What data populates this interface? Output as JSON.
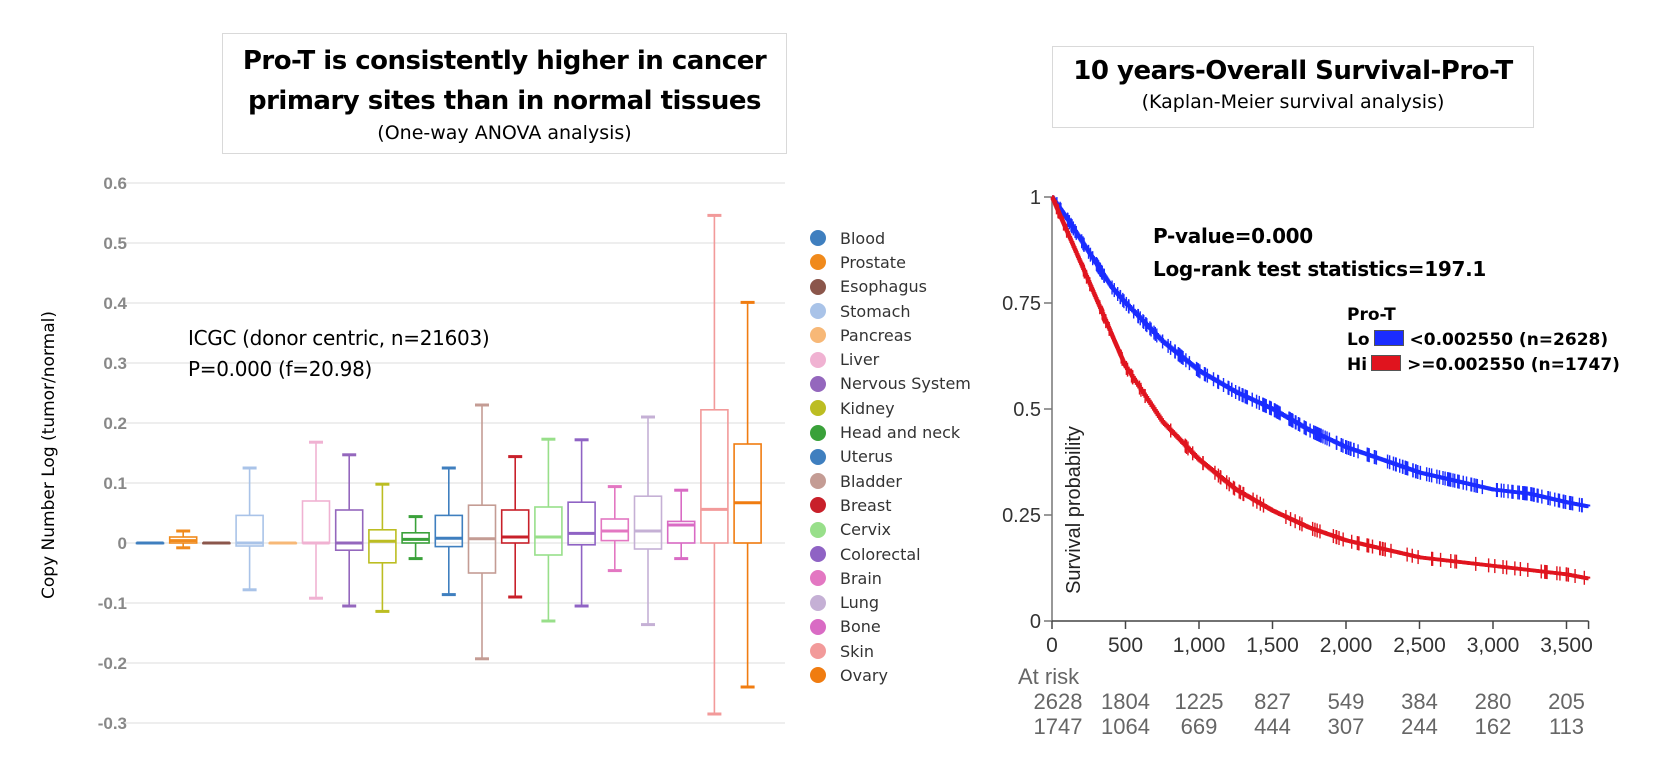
{
  "left_panel": {
    "title_line1": "Pro-T is consistently higher in cancer",
    "title_line2": "primary sites than in normal tissues",
    "subtitle": "(One-way ANOVA analysis)",
    "annotation_line1": "ICGC (donor centric, n=21603)",
    "annotation_line2": "P=0.000 (f=20.98)"
  },
  "right_panel": {
    "title": "10 years-Overall Survival-Pro-T",
    "subtitle": "(Kaplan-Meier survival analysis)",
    "pvalue": "P-value=0.000",
    "logrank": "Log-rank test statistics=197.1",
    "legend_title": "Pro-T",
    "legend": [
      {
        "group": "Lo",
        "label": "<0.002550 (n=2628)",
        "color": "#1a2cff"
      },
      {
        "group": "Hi",
        "label": ">=0.002550 (n=1747)",
        "color": "#e0141e"
      }
    ],
    "at_risk_label": "At risk"
  },
  "chart_data": [
    {
      "type": "boxplot",
      "title": "Pro-T is consistently higher in cancer primary sites than in normal tissues",
      "subtitle": "(One-way ANOVA analysis)",
      "xlabel": "",
      "ylabel": "Copy Number Log (tumor/normal)",
      "ylim": [
        -0.3,
        0.6
      ],
      "yticks": [
        0.6,
        0.5,
        0.4,
        0.3,
        0.2,
        0.1,
        0,
        -0.1,
        -0.2,
        -0.3
      ],
      "ytick_labels": [
        "0.6",
        "0.5",
        "0.4",
        "0.3",
        "0.2",
        "0.1",
        "0",
        "-0.1",
        "-0.2",
        "-0.3"
      ],
      "grid": true,
      "legend_position": "right",
      "series": [
        {
          "name": "Blood",
          "color": "#3f7fbf",
          "min": 0.0,
          "q1": 0.0,
          "median": 0.0,
          "q3": 0.0,
          "max": 0.0
        },
        {
          "name": "Prostate",
          "color": "#f08a1c",
          "min": -0.008,
          "q1": 0.0,
          "median": 0.004,
          "q3": 0.01,
          "max": 0.02
        },
        {
          "name": "Esophagus",
          "color": "#8b564b",
          "min": 0.0,
          "q1": 0.0,
          "median": 0.0,
          "q3": 0.0,
          "max": 0.0
        },
        {
          "name": "Stomach",
          "color": "#a9c3e8",
          "min": -0.078,
          "q1": -0.005,
          "median": 0.0,
          "q3": 0.046,
          "max": 0.125
        },
        {
          "name": "Pancreas",
          "color": "#f7b877",
          "min": 0.0,
          "q1": 0.0,
          "median": 0.0,
          "q3": 0.0,
          "max": 0.0
        },
        {
          "name": "Liver",
          "color": "#f0b2d2",
          "min": -0.092,
          "q1": 0.0,
          "median": 0.0,
          "q3": 0.07,
          "max": 0.168
        },
        {
          "name": "Nervous System",
          "color": "#9467bd",
          "min": -0.105,
          "q1": -0.012,
          "median": 0.0,
          "q3": 0.055,
          "max": 0.147
        },
        {
          "name": "Kidney",
          "color": "#bcbd22",
          "min": -0.114,
          "q1": -0.033,
          "median": 0.003,
          "q3": 0.022,
          "max": 0.098
        },
        {
          "name": "Head and neck",
          "color": "#3aa13a",
          "min": -0.026,
          "q1": 0.0,
          "median": 0.006,
          "q3": 0.017,
          "max": 0.044
        },
        {
          "name": "Uterus",
          "color": "#3f7fbf",
          "min": -0.086,
          "q1": -0.006,
          "median": 0.008,
          "q3": 0.046,
          "max": 0.125
        },
        {
          "name": "Bladder",
          "color": "#c49c94",
          "min": -0.193,
          "q1": -0.05,
          "median": 0.007,
          "q3": 0.063,
          "max": 0.23
        },
        {
          "name": "Breast",
          "color": "#c8202a",
          "min": -0.09,
          "q1": 0.0,
          "median": 0.01,
          "q3": 0.055,
          "max": 0.144
        },
        {
          "name": "Cervix",
          "color": "#98df8a",
          "min": -0.13,
          "q1": -0.02,
          "median": 0.01,
          "q3": 0.06,
          "max": 0.173
        },
        {
          "name": "Colorectal",
          "color": "#8f63c4",
          "min": -0.105,
          "q1": -0.003,
          "median": 0.016,
          "q3": 0.068,
          "max": 0.172
        },
        {
          "name": "Brain",
          "color": "#e377c2",
          "min": -0.046,
          "q1": 0.004,
          "median": 0.02,
          "q3": 0.04,
          "max": 0.094
        },
        {
          "name": "Lung",
          "color": "#c5b0d5",
          "min": -0.136,
          "q1": -0.01,
          "median": 0.02,
          "q3": 0.078,
          "max": 0.21
        },
        {
          "name": "Bone",
          "color": "#d96bc4",
          "min": -0.026,
          "q1": 0.0,
          "median": 0.03,
          "q3": 0.036,
          "max": 0.088
        },
        {
          "name": "Skin",
          "color": "#f29a9a",
          "min": -0.285,
          "q1": 0.0,
          "median": 0.056,
          "q3": 0.222,
          "max": 0.546
        },
        {
          "name": "Ovary",
          "color": "#f07c10",
          "min": -0.24,
          "q1": 0.0,
          "median": 0.067,
          "q3": 0.165,
          "max": 0.401
        }
      ],
      "annotations": [
        "ICGC (donor centric, n=21603)",
        "P=0.000 (f=20.98)"
      ]
    },
    {
      "type": "line",
      "subtype": "kaplan-meier",
      "title": "10 years-Overall Survival-Pro-T",
      "subtitle": "(Kaplan-Meier survival analysis)",
      "xlabel": "",
      "ylabel": "Survival probability",
      "xlim": [
        0,
        3650
      ],
      "ylim": [
        0,
        1
      ],
      "xticks": [
        0,
        500,
        1000,
        1500,
        2000,
        2500,
        3000,
        3500
      ],
      "xtick_labels": [
        "0",
        "500",
        "1,000",
        "1,500",
        "2,000",
        "2,500",
        "3,000",
        "3,500"
      ],
      "yticks": [
        0,
        0.25,
        0.5,
        0.75,
        1
      ],
      "ytick_labels": [
        "0",
        "0.25",
        "0.5",
        "0.75",
        "1"
      ],
      "grid": false,
      "legend_position": "top-right",
      "series": [
        {
          "name": "Lo <0.002550 (n=2628)",
          "color": "#1a2cff",
          "x": [
            0,
            100,
            250,
            400,
            500,
            750,
            1000,
            1250,
            1500,
            1750,
            2000,
            2250,
            2500,
            2750,
            3000,
            3250,
            3500,
            3650
          ],
          "y": [
            1.0,
            0.95,
            0.87,
            0.79,
            0.75,
            0.66,
            0.59,
            0.54,
            0.5,
            0.45,
            0.41,
            0.38,
            0.35,
            0.33,
            0.31,
            0.3,
            0.28,
            0.27
          ]
        },
        {
          "name": "Hi >=0.002550 (n=1747)",
          "color": "#e0141e",
          "x": [
            0,
            100,
            250,
            400,
            500,
            750,
            1000,
            1250,
            1500,
            1750,
            2000,
            2250,
            2500,
            2750,
            3000,
            3250,
            3500,
            3650
          ],
          "y": [
            1.0,
            0.92,
            0.8,
            0.68,
            0.6,
            0.47,
            0.38,
            0.31,
            0.26,
            0.22,
            0.19,
            0.17,
            0.15,
            0.14,
            0.13,
            0.12,
            0.11,
            0.1
          ]
        }
      ],
      "at_risk": {
        "label": "At risk",
        "times": [
          0,
          500,
          1000,
          1500,
          2000,
          2500,
          3000,
          3500
        ],
        "rows": [
          {
            "group": "Lo",
            "values": [
              2628,
              1804,
              1225,
              827,
              549,
              384,
              280,
              205
            ]
          },
          {
            "group": "Hi",
            "values": [
              1747,
              1064,
              669,
              444,
              307,
              244,
              162,
              113
            ]
          }
        ]
      },
      "annotations": [
        "P-value=0.000",
        "Log-rank test statistics=197.1"
      ]
    }
  ]
}
